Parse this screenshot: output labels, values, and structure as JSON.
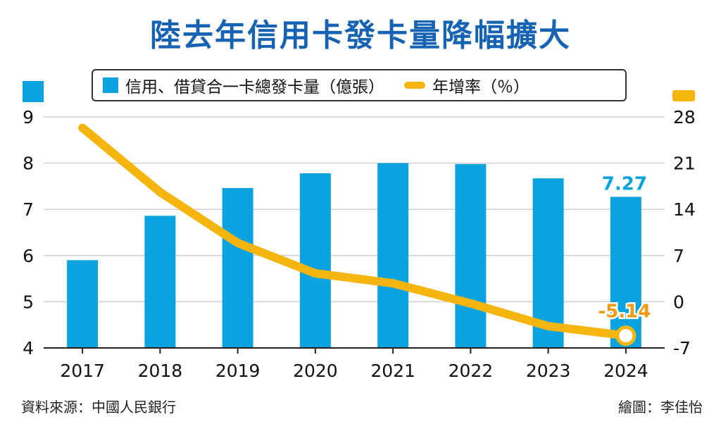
{
  "title": "陸去年信用卡發卡量降幅擴大",
  "legend": {
    "bars_label": "信用、借貸合一卡總發卡量（億張）",
    "line_label": "年增率（％）"
  },
  "footer": {
    "source": "資料來源：中國人民銀行",
    "credit": "繪圖：李佳怡"
  },
  "colors": {
    "bar": "#0aa3df",
    "line": "#f6b50e",
    "bar_label": "#0aa3df",
    "line_label": "#f49a10",
    "grid": "#cfcfcf",
    "title": "#1763b3"
  },
  "chart_data": {
    "type": "bar+line",
    "categories": [
      "2017",
      "2018",
      "2019",
      "2020",
      "2021",
      "2022",
      "2023",
      "2024"
    ],
    "series": [
      {
        "name": "信用、借貸合一卡總發卡量（億張）",
        "type": "bar",
        "axis": "left",
        "values": [
          5.9,
          6.86,
          7.46,
          7.78,
          8.0,
          7.98,
          7.67,
          7.27
        ]
      },
      {
        "name": "年增率（％）",
        "type": "line",
        "axis": "right",
        "values": [
          26.35,
          16.6,
          8.9,
          4.3,
          2.8,
          -0.26,
          -3.7,
          -5.14
        ]
      }
    ],
    "left_axis": {
      "ylim": [
        4,
        9
      ],
      "ticks": [
        "4",
        "5",
        "6",
        "7",
        "8",
        "9"
      ]
    },
    "right_axis": {
      "ylim": [
        -7,
        28
      ],
      "ticks": [
        "-7",
        "0",
        "7",
        "14",
        "21",
        "28"
      ]
    },
    "annotations": [
      {
        "series": 0,
        "index": 7,
        "text": "7.27"
      },
      {
        "series": 1,
        "index": 7,
        "text": "-5.14"
      }
    ],
    "grid": true
  }
}
